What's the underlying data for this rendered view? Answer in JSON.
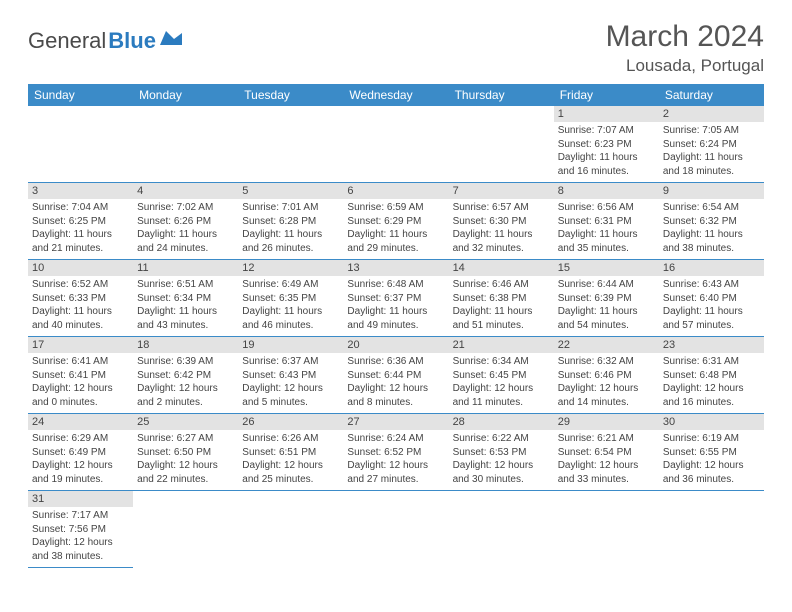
{
  "logo": {
    "text1": "General",
    "text2": "Blue"
  },
  "title": "March 2024",
  "location": "Lousada, Portugal",
  "colors": {
    "header_bg": "#3b8bc8",
    "header_text": "#ffffff",
    "daynum_bg": "#e3e3e3",
    "cell_border": "#3b8bc8",
    "logo_blue": "#2b7bbf",
    "body_text": "#444444"
  },
  "weekdays": [
    "Sunday",
    "Monday",
    "Tuesday",
    "Wednesday",
    "Thursday",
    "Friday",
    "Saturday"
  ],
  "first_weekday_index": 5,
  "days": [
    {
      "n": 1,
      "sr": "7:07 AM",
      "ss": "6:23 PM",
      "dl": "11 hours and 16 minutes."
    },
    {
      "n": 2,
      "sr": "7:05 AM",
      "ss": "6:24 PM",
      "dl": "11 hours and 18 minutes."
    },
    {
      "n": 3,
      "sr": "7:04 AM",
      "ss": "6:25 PM",
      "dl": "11 hours and 21 minutes."
    },
    {
      "n": 4,
      "sr": "7:02 AM",
      "ss": "6:26 PM",
      "dl": "11 hours and 24 minutes."
    },
    {
      "n": 5,
      "sr": "7:01 AM",
      "ss": "6:28 PM",
      "dl": "11 hours and 26 minutes."
    },
    {
      "n": 6,
      "sr": "6:59 AM",
      "ss": "6:29 PM",
      "dl": "11 hours and 29 minutes."
    },
    {
      "n": 7,
      "sr": "6:57 AM",
      "ss": "6:30 PM",
      "dl": "11 hours and 32 minutes."
    },
    {
      "n": 8,
      "sr": "6:56 AM",
      "ss": "6:31 PM",
      "dl": "11 hours and 35 minutes."
    },
    {
      "n": 9,
      "sr": "6:54 AM",
      "ss": "6:32 PM",
      "dl": "11 hours and 38 minutes."
    },
    {
      "n": 10,
      "sr": "6:52 AM",
      "ss": "6:33 PM",
      "dl": "11 hours and 40 minutes."
    },
    {
      "n": 11,
      "sr": "6:51 AM",
      "ss": "6:34 PM",
      "dl": "11 hours and 43 minutes."
    },
    {
      "n": 12,
      "sr": "6:49 AM",
      "ss": "6:35 PM",
      "dl": "11 hours and 46 minutes."
    },
    {
      "n": 13,
      "sr": "6:48 AM",
      "ss": "6:37 PM",
      "dl": "11 hours and 49 minutes."
    },
    {
      "n": 14,
      "sr": "6:46 AM",
      "ss": "6:38 PM",
      "dl": "11 hours and 51 minutes."
    },
    {
      "n": 15,
      "sr": "6:44 AM",
      "ss": "6:39 PM",
      "dl": "11 hours and 54 minutes."
    },
    {
      "n": 16,
      "sr": "6:43 AM",
      "ss": "6:40 PM",
      "dl": "11 hours and 57 minutes."
    },
    {
      "n": 17,
      "sr": "6:41 AM",
      "ss": "6:41 PM",
      "dl": "12 hours and 0 minutes."
    },
    {
      "n": 18,
      "sr": "6:39 AM",
      "ss": "6:42 PM",
      "dl": "12 hours and 2 minutes."
    },
    {
      "n": 19,
      "sr": "6:37 AM",
      "ss": "6:43 PM",
      "dl": "12 hours and 5 minutes."
    },
    {
      "n": 20,
      "sr": "6:36 AM",
      "ss": "6:44 PM",
      "dl": "12 hours and 8 minutes."
    },
    {
      "n": 21,
      "sr": "6:34 AM",
      "ss": "6:45 PM",
      "dl": "12 hours and 11 minutes."
    },
    {
      "n": 22,
      "sr": "6:32 AM",
      "ss": "6:46 PM",
      "dl": "12 hours and 14 minutes."
    },
    {
      "n": 23,
      "sr": "6:31 AM",
      "ss": "6:48 PM",
      "dl": "12 hours and 16 minutes."
    },
    {
      "n": 24,
      "sr": "6:29 AM",
      "ss": "6:49 PM",
      "dl": "12 hours and 19 minutes."
    },
    {
      "n": 25,
      "sr": "6:27 AM",
      "ss": "6:50 PM",
      "dl": "12 hours and 22 minutes."
    },
    {
      "n": 26,
      "sr": "6:26 AM",
      "ss": "6:51 PM",
      "dl": "12 hours and 25 minutes."
    },
    {
      "n": 27,
      "sr": "6:24 AM",
      "ss": "6:52 PM",
      "dl": "12 hours and 27 minutes."
    },
    {
      "n": 28,
      "sr": "6:22 AM",
      "ss": "6:53 PM",
      "dl": "12 hours and 30 minutes."
    },
    {
      "n": 29,
      "sr": "6:21 AM",
      "ss": "6:54 PM",
      "dl": "12 hours and 33 minutes."
    },
    {
      "n": 30,
      "sr": "6:19 AM",
      "ss": "6:55 PM",
      "dl": "12 hours and 36 minutes."
    },
    {
      "n": 31,
      "sr": "7:17 AM",
      "ss": "7:56 PM",
      "dl": "12 hours and 38 minutes."
    }
  ],
  "labels": {
    "sunrise": "Sunrise:",
    "sunset": "Sunset:",
    "daylight": "Daylight:"
  }
}
